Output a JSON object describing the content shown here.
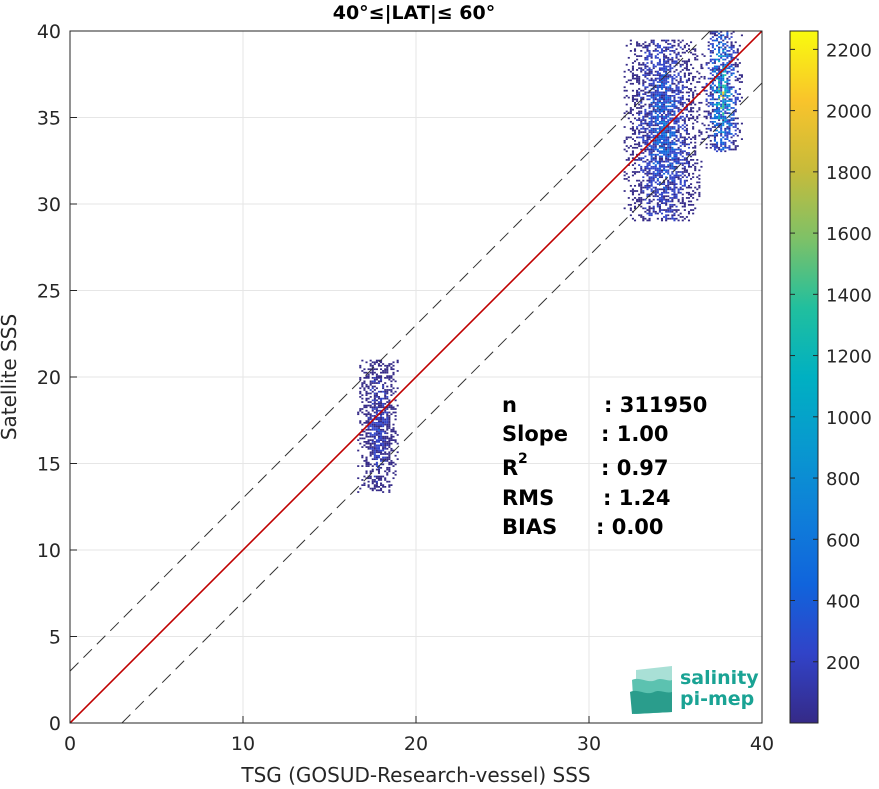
{
  "chart_data": {
    "type": "heatmap",
    "title": "40°≤|LAT|≤ 60°",
    "xlabel": "TSG (GOSUD-Research-vessel) SSS",
    "ylabel": "Satellite SSS",
    "xlim": [
      0,
      40
    ],
    "ylim": [
      0,
      40
    ],
    "xticks": [
      "0",
      "10",
      "20",
      "30",
      "40"
    ],
    "yticks": [
      "0",
      "5",
      "10",
      "15",
      "20",
      "25",
      "30",
      "35",
      "40"
    ],
    "grid": true,
    "reference_lines": {
      "one_to_one": {
        "slope": 1,
        "intercept": 0,
        "color": "#c00000"
      },
      "envelope_offset": 3,
      "envelope_style": "dashed"
    },
    "colorbar": {
      "min": 0,
      "max": 2260,
      "ticks": [
        "200",
        "400",
        "600",
        "800",
        "1000",
        "1200",
        "1400",
        "1600",
        "1800",
        "2000",
        "2200"
      ],
      "colormap": "parula"
    },
    "clusters": [
      {
        "x": [
          16.6,
          19.0
        ],
        "y": [
          13.3,
          21.0
        ],
        "peak": 420
      },
      {
        "x": [
          32.0,
          36.5
        ],
        "y": [
          29.0,
          39.5
        ],
        "peak": 900
      },
      {
        "x": [
          36.5,
          38.8
        ],
        "y": [
          33.0,
          40.0
        ],
        "peak": 2260
      }
    ],
    "stats": {
      "n_label": "n",
      "n_value": ": 311950",
      "slope_label": "Slope",
      "slope_value": ": 1.00",
      "r2_label": "R",
      "r2_sup": "2",
      "r2_value": ": 0.97",
      "rms_label": "RMS",
      "rms_value": ": 1.24",
      "bias_label": "BIAS",
      "bias_value": ": 0.00"
    }
  },
  "logo": {
    "line1": "salinity",
    "line2": "pi-mep"
  },
  "colors": {
    "accent_line": "#c00000",
    "logo": "#1aa394"
  }
}
